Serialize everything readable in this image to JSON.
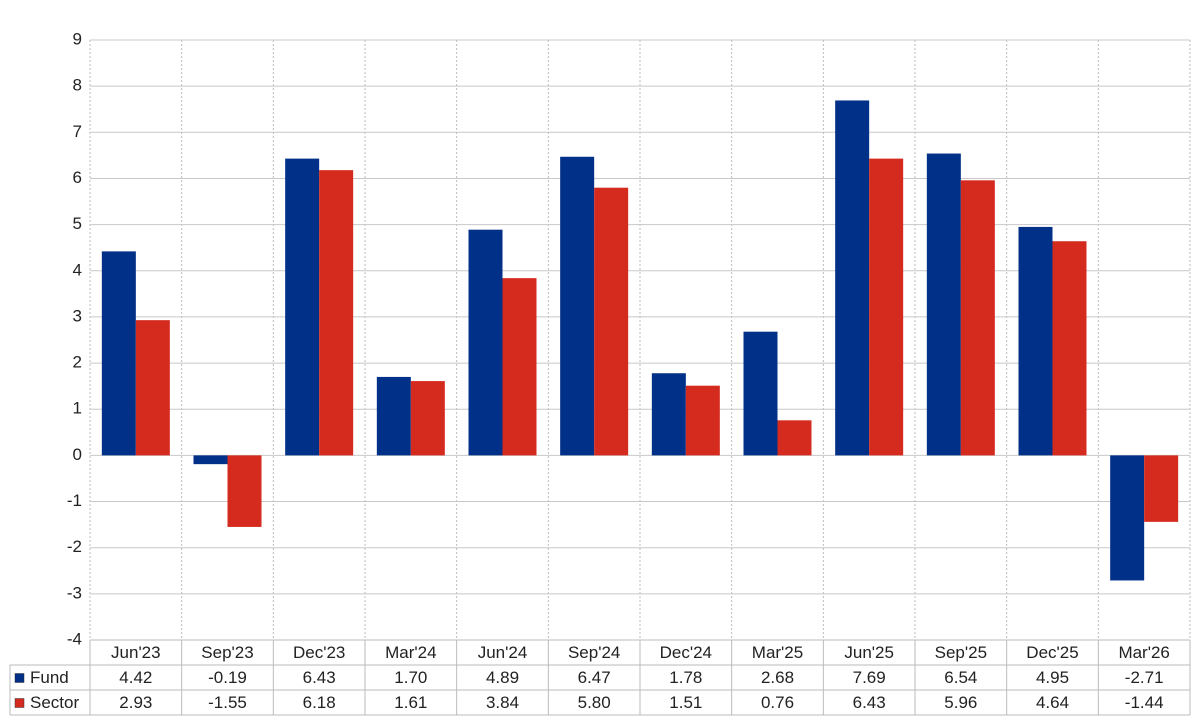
{
  "chart_data": {
    "type": "bar",
    "categories": [
      "Jun'23",
      "Sep'23",
      "Dec'23",
      "Mar'24",
      "Jun'24",
      "Sep'24",
      "Dec'24",
      "Mar'25",
      "Jun'25",
      "Sep'25",
      "Dec'25",
      "Mar'26"
    ],
    "series": [
      {
        "name": "Fund",
        "color": "#003087",
        "values": [
          4.42,
          -0.19,
          6.43,
          1.7,
          4.89,
          6.47,
          1.78,
          2.68,
          7.69,
          6.54,
          4.95,
          -2.71
        ],
        "value_labels": [
          "4.42",
          "-0.19",
          "6.43",
          "1.70",
          "4.89",
          "6.47",
          "1.78",
          "2.68",
          "7.69",
          "6.54",
          "4.95",
          "-2.71"
        ]
      },
      {
        "name": "Sector",
        "color": "#d52b1e",
        "values": [
          2.93,
          -1.55,
          6.18,
          1.61,
          3.84,
          5.8,
          1.51,
          0.76,
          6.43,
          5.96,
          4.64,
          -1.44
        ],
        "value_labels": [
          "2.93",
          "-1.55",
          "6.18",
          "1.61",
          "3.84",
          "5.80",
          "1.51",
          "0.76",
          "6.43",
          "5.96",
          "4.64",
          "-1.44"
        ]
      }
    ],
    "ylim": [
      -4,
      9
    ],
    "yticks": [
      -4,
      -3,
      -2,
      -1,
      0,
      1,
      2,
      3,
      4,
      5,
      6,
      7,
      8,
      9
    ],
    "grid": true
  }
}
